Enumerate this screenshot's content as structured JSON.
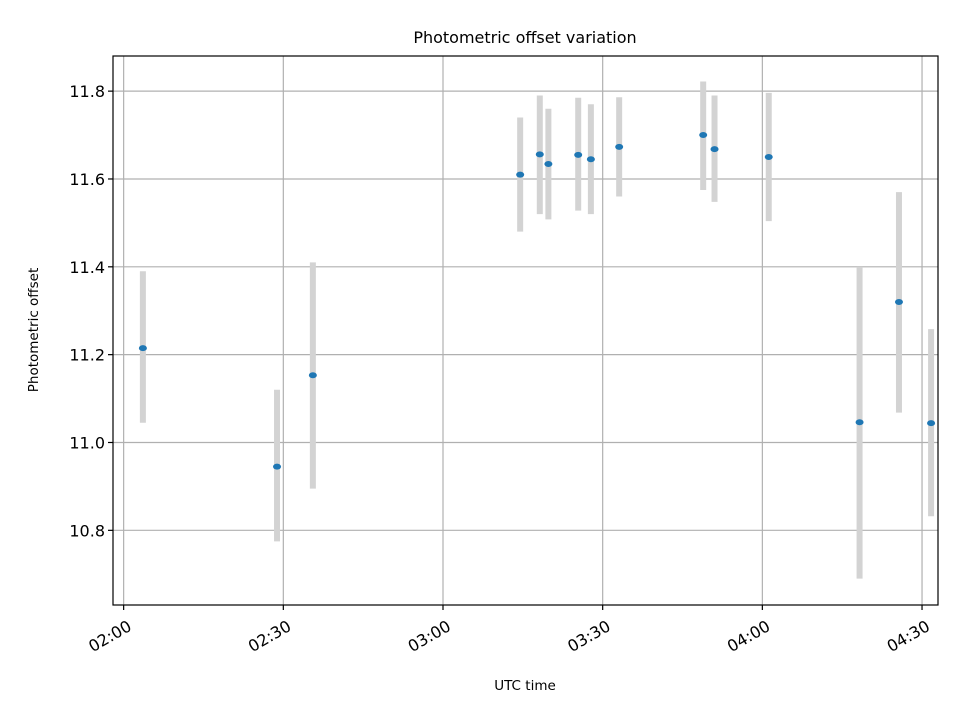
{
  "chart_data": {
    "type": "scatter",
    "title": "Photometric offset variation",
    "xlabel": "UTC time",
    "ylabel": "Photometric offset",
    "xlim": [
      "01:58",
      "04:33"
    ],
    "ylim": [
      10.63,
      11.88
    ],
    "x_ticks": [
      "02:00",
      "02:30",
      "03:00",
      "03:30",
      "04:00",
      "04:30"
    ],
    "y_ticks": [
      "10.8",
      "11.0",
      "11.2",
      "11.4",
      "11.6",
      "11.8"
    ],
    "grid": true,
    "marker_color": "#1f77b4",
    "errorbar_color": "#d3d3d3",
    "points": [
      {
        "time": "02:03:37",
        "y": 11.215,
        "err_low": 11.045,
        "err_high": 11.39
      },
      {
        "time": "02:28:49",
        "y": 10.945,
        "err_low": 10.775,
        "err_high": 11.12
      },
      {
        "time": "02:35:33",
        "y": 11.153,
        "err_low": 10.895,
        "err_high": 11.41
      },
      {
        "time": "03:14:30",
        "y": 11.61,
        "err_low": 11.48,
        "err_high": 11.74
      },
      {
        "time": "03:18:11",
        "y": 11.656,
        "err_low": 11.52,
        "err_high": 11.79
      },
      {
        "time": "03:19:48",
        "y": 11.634,
        "err_low": 11.508,
        "err_high": 11.76
      },
      {
        "time": "03:25:24",
        "y": 11.655,
        "err_low": 11.528,
        "err_high": 11.785
      },
      {
        "time": "03:27:47",
        "y": 11.645,
        "err_low": 11.52,
        "err_high": 11.77
      },
      {
        "time": "03:33:06",
        "y": 11.673,
        "err_low": 11.56,
        "err_high": 11.786
      },
      {
        "time": "03:48:53",
        "y": 11.7,
        "err_low": 11.575,
        "err_high": 11.822
      },
      {
        "time": "03:51:01",
        "y": 11.668,
        "err_low": 11.548,
        "err_high": 11.79
      },
      {
        "time": "04:01:12",
        "y": 11.65,
        "err_low": 11.504,
        "err_high": 11.796
      },
      {
        "time": "04:18:16",
        "y": 11.046,
        "err_low": 10.69,
        "err_high": 11.4
      },
      {
        "time": "04:25:40",
        "y": 11.32,
        "err_low": 11.068,
        "err_high": 11.57
      },
      {
        "time": "04:31:42",
        "y": 11.044,
        "err_low": 10.832,
        "err_high": 11.258
      }
    ]
  }
}
